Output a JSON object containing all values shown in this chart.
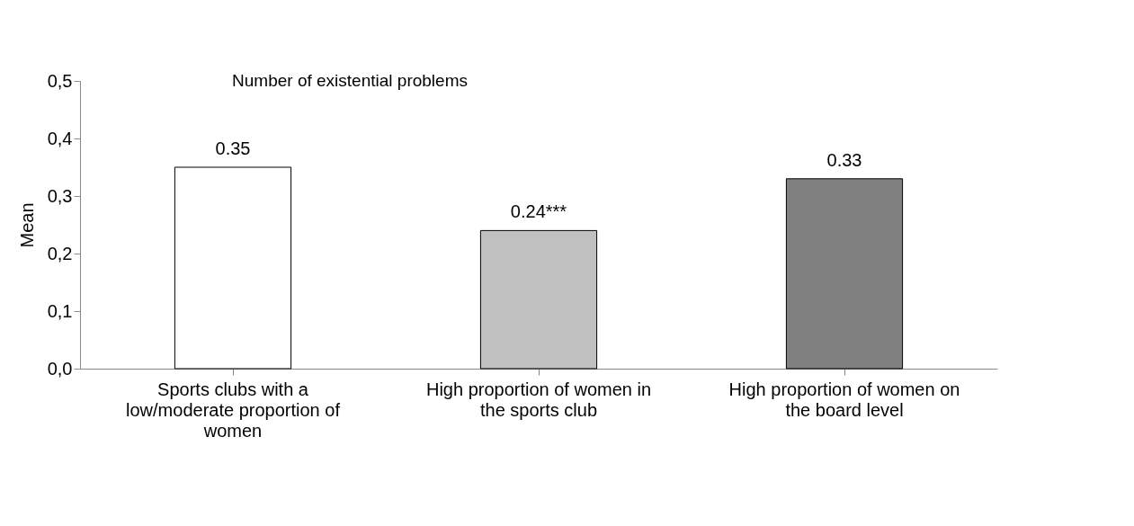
{
  "chart_data": {
    "type": "bar",
    "title": "Number of existential problems",
    "ylabel": "Mean",
    "categories": [
      "Sports clubs with a low/moderate proportion of women",
      "High proportion of women in the sports club",
      "High proportion of women on the board level"
    ],
    "values": [
      0.35,
      0.24,
      0.33
    ],
    "colors": [
      "#ffffff",
      "#c0c0c0",
      "#808080"
    ],
    "value_labels": [
      "0.35",
      "0.24***",
      "0.33"
    ],
    "ylim": [
      0,
      0.5
    ],
    "yticks": [
      {
        "value": 0,
        "label": "0,0"
      },
      {
        "value": 0.1,
        "label": "0,1"
      },
      {
        "value": 0.2,
        "label": "0,2"
      },
      {
        "value": 0.3,
        "label": "0,3"
      },
      {
        "value": 0.4,
        "label": "0,4"
      },
      {
        "value": 0.5,
        "label": "0,5"
      }
    ],
    "grid": false
  }
}
